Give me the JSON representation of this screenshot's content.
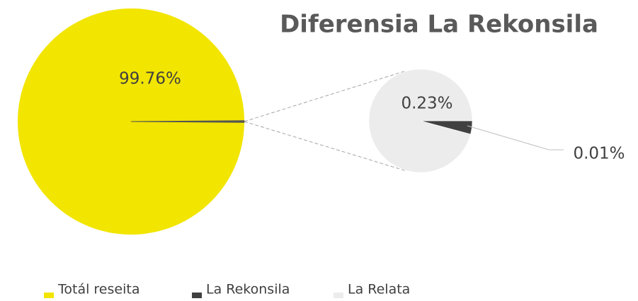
{
  "chart_data": {
    "type": "pie-of-pie",
    "title": "Diferensia La Rekonsila",
    "categories": [
      "Totál reseita",
      "La Rekonsila",
      "La Relata"
    ],
    "values": [
      99.76,
      0.01,
      0.23
    ],
    "value_labels": [
      "99.76%",
      "0.01%",
      "0.23%"
    ],
    "colors": [
      "#f2e500",
      "#404040",
      "#ececec"
    ],
    "secondary_indices": [
      1,
      2
    ],
    "legend": "bottom"
  }
}
